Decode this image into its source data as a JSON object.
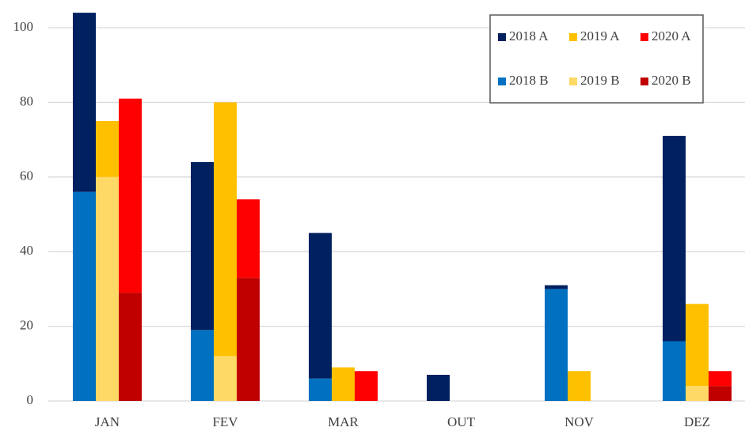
{
  "chart_data": {
    "type": "bar",
    "categories": [
      "JAN",
      "FEV",
      "MAR",
      "OUT",
      "NOV",
      "DEZ"
    ],
    "series": [
      {
        "name": "2018 A",
        "color": "#002060",
        "values": [
          48,
          45,
          39,
          7,
          1,
          55
        ]
      },
      {
        "name": "2019 A",
        "color": "#FFC000",
        "values": [
          15,
          68,
          9,
          0,
          8,
          22
        ]
      },
      {
        "name": "2020 A",
        "color": "#FF0000",
        "values": [
          52,
          21,
          8,
          0,
          0,
          4
        ]
      },
      {
        "name": "2018 B",
        "color": "#0070C0",
        "values": [
          56,
          19,
          6,
          0,
          30,
          16
        ]
      },
      {
        "name": "2019 B",
        "color": "#FFD966",
        "values": [
          60,
          12,
          0,
          0,
          0,
          4
        ]
      },
      {
        "name": "2020 B",
        "color": "#C00000",
        "values": [
          29,
          33,
          0,
          0,
          0,
          4
        ]
      }
    ],
    "ylim": [
      0,
      105
    ],
    "yticks": [
      0,
      20,
      40,
      60,
      80,
      100
    ],
    "grid": true,
    "legend": "upper right"
  }
}
